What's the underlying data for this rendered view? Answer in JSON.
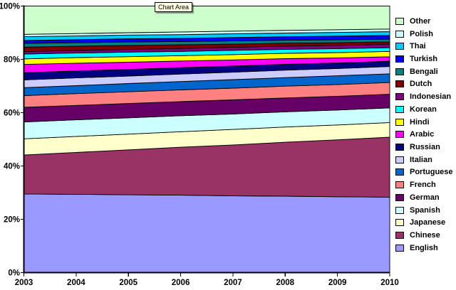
{
  "tooltip": {
    "label": "Chart Area",
    "bg_color": "#FFFFE1"
  },
  "colors": {
    "background": "#FFFFFF",
    "axis": "#000000",
    "series_outline": "#000000"
  },
  "axes": {
    "y_tick_labels": [
      "0%",
      "20%",
      "40%",
      "60%",
      "80%",
      "100%"
    ],
    "x_tick_labels": [
      "2003",
      "2004",
      "2005",
      "2006",
      "2007",
      "2008",
      "2009",
      "2010"
    ]
  },
  "legend": {
    "position": "right"
  },
  "chart_data": {
    "type": "area",
    "stacking": "percent",
    "title": "",
    "xlabel": "",
    "ylabel": "",
    "ylim": [
      0,
      100
    ],
    "grid": false,
    "legend_position": "right",
    "x": [
      2003,
      2004,
      2005,
      2006,
      2007,
      2008,
      2009,
      2010
    ],
    "series": [
      {
        "name": "English",
        "color": "#9999FF",
        "values": [
          29.5,
          29.3,
          29.2,
          29.0,
          28.8,
          28.6,
          28.5,
          28.3
        ]
      },
      {
        "name": "Chinese",
        "color": "#993366",
        "values": [
          14.6,
          15.7,
          16.9,
          18.0,
          19.1,
          20.2,
          21.4,
          22.5
        ]
      },
      {
        "name": "Japanese",
        "color": "#FFFFCC",
        "values": [
          6.1,
          6.0,
          5.9,
          5.8,
          5.8,
          5.7,
          5.6,
          5.5
        ]
      },
      {
        "name": "Spanish",
        "color": "#CCFFFF",
        "values": [
          6.3,
          6.2,
          6.1,
          6.0,
          5.8,
          5.7,
          5.6,
          5.5
        ]
      },
      {
        "name": "German",
        "color": "#660066",
        "values": [
          5.5,
          5.4,
          5.4,
          5.3,
          5.3,
          5.2,
          5.2,
          5.1
        ]
      },
      {
        "name": "French",
        "color": "#FF8080",
        "values": [
          4.4,
          4.4,
          4.4,
          4.4,
          4.4,
          4.4,
          4.4,
          4.4
        ]
      },
      {
        "name": "Portuguese",
        "color": "#0066CC",
        "values": [
          3.0,
          3.0,
          3.1,
          3.1,
          3.2,
          3.2,
          3.3,
          3.3
        ]
      },
      {
        "name": "Italian",
        "color": "#CCCCFF",
        "values": [
          2.9,
          2.9,
          2.8,
          2.8,
          2.8,
          2.8,
          2.7,
          2.7
        ]
      },
      {
        "name": "Russian",
        "color": "#000080",
        "values": [
          2.7,
          2.6,
          2.5,
          2.4,
          2.3,
          2.2,
          2.1,
          2.0
        ]
      },
      {
        "name": "Arabic",
        "color": "#FF00FF",
        "values": [
          3.1,
          2.9,
          2.7,
          2.5,
          2.3,
          2.1,
          1.9,
          1.7
        ]
      },
      {
        "name": "Hindi",
        "color": "#FFFF00",
        "values": [
          2.1,
          2.1,
          2.1,
          2.0,
          2.0,
          2.0,
          2.0,
          2.0
        ]
      },
      {
        "name": "Korean",
        "color": "#00FFFF",
        "values": [
          1.8,
          1.7,
          1.7,
          1.6,
          1.6,
          1.5,
          1.5,
          1.4
        ]
      },
      {
        "name": "Indonesian",
        "color": "#800080",
        "values": [
          0.9,
          1.0,
          1.0,
          1.1,
          1.1,
          1.2,
          1.2,
          1.3
        ]
      },
      {
        "name": "Dutch",
        "color": "#800000",
        "values": [
          1.7,
          1.6,
          1.5,
          1.4,
          1.2,
          1.1,
          1.0,
          0.9
        ]
      },
      {
        "name": "Bengali",
        "color": "#008080",
        "values": [
          1.4,
          1.3,
          1.3,
          1.2,
          1.2,
          1.1,
          1.1,
          1.0
        ]
      },
      {
        "name": "Turkish",
        "color": "#0000FF",
        "values": [
          1.1,
          1.1,
          1.2,
          1.2,
          1.3,
          1.3,
          1.4,
          1.4
        ]
      },
      {
        "name": "Thai",
        "color": "#00CCFF",
        "values": [
          1.4,
          1.4,
          1.4,
          1.4,
          1.4,
          1.4,
          1.4,
          1.4
        ]
      },
      {
        "name": "Polish",
        "color": "#CCFFFF",
        "values": [
          0.9,
          0.9,
          0.9,
          1.0,
          1.0,
          1.0,
          1.0,
          1.0
        ]
      },
      {
        "name": "Other",
        "color": "#CCFFCC",
        "values": [
          10.6,
          10.3,
          10.0,
          9.7,
          9.4,
          9.1,
          8.9,
          8.6
        ]
      }
    ]
  }
}
